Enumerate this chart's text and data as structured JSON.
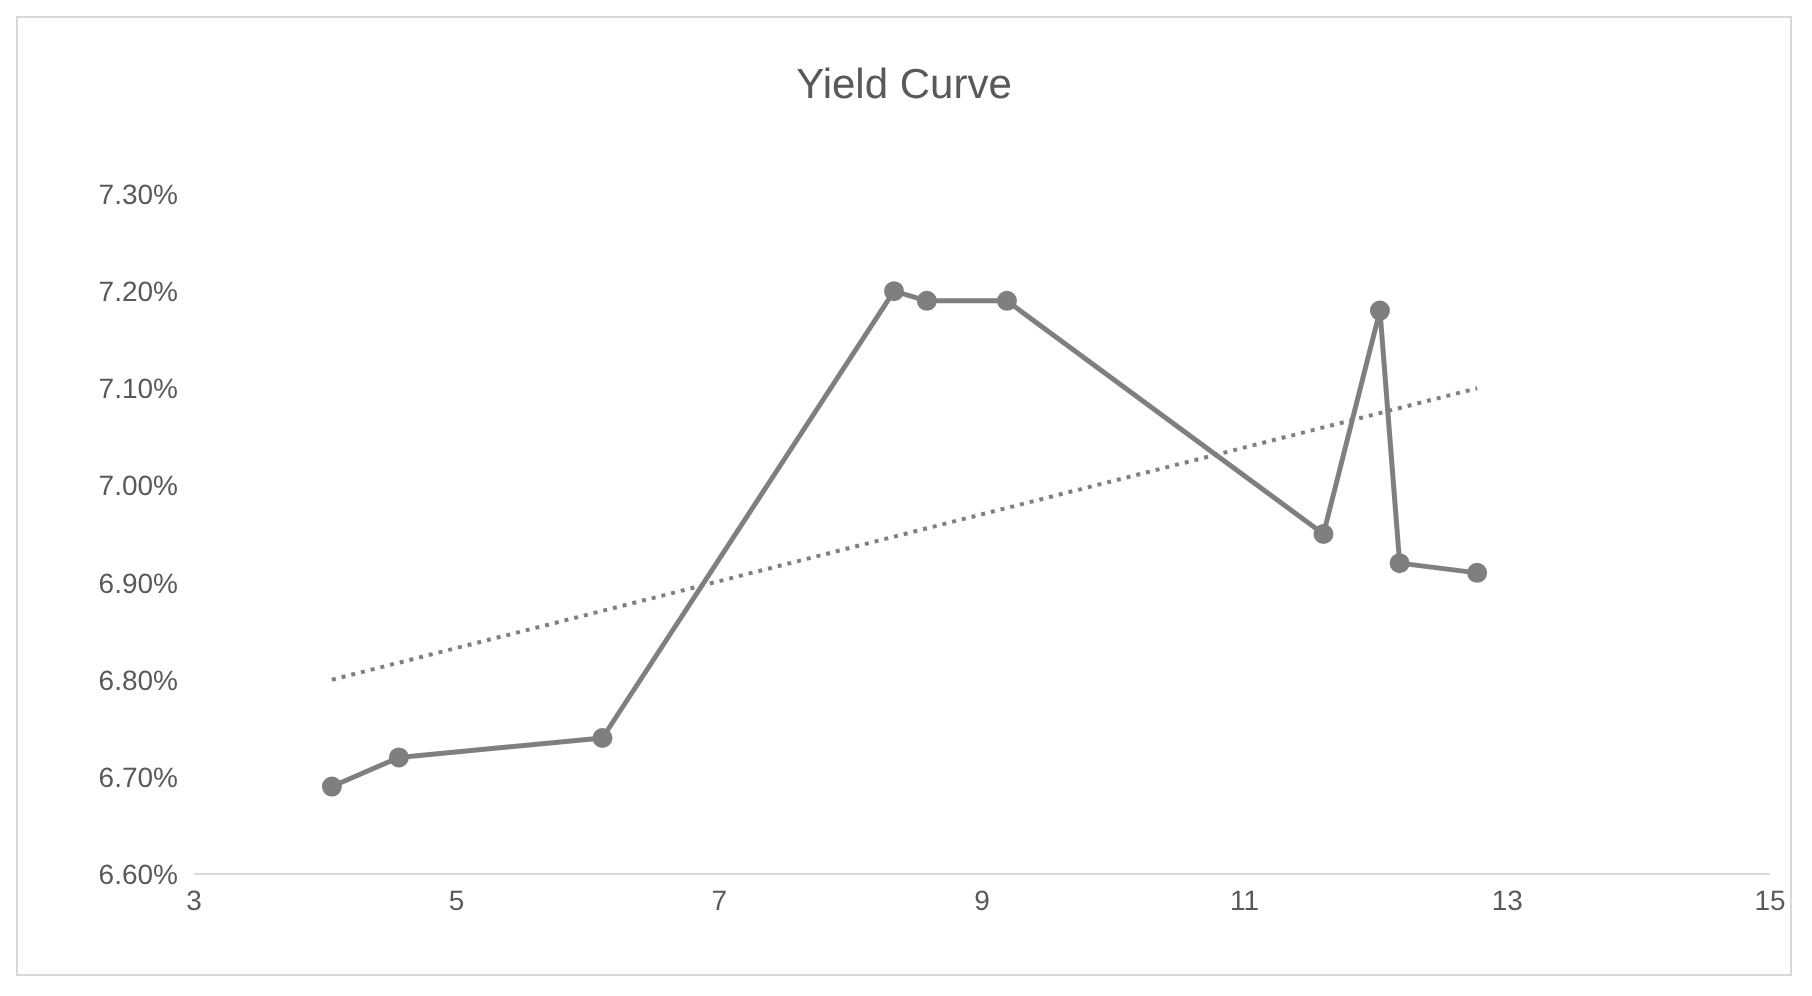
{
  "chart_data": {
    "type": "line",
    "title": "Yield Curve",
    "xlim": [
      3,
      15
    ],
    "xticks": [
      3,
      5,
      7,
      9,
      11,
      13,
      15
    ],
    "ylim": [
      6.6,
      7.3
    ],
    "yticks": [
      {
        "value": 6.6,
        "label": "6.60%"
      },
      {
        "value": 6.7,
        "label": "6.70%"
      },
      {
        "value": 6.8,
        "label": "6.80%"
      },
      {
        "value": 6.9,
        "label": "6.90%"
      },
      {
        "value": 7.0,
        "label": "7.00%"
      },
      {
        "value": 7.1,
        "label": "7.10%"
      },
      {
        "value": 7.2,
        "label": "7.20%"
      },
      {
        "value": 7.3,
        "label": "7.30%"
      }
    ],
    "grid": false,
    "series": [
      {
        "color": "#7f7f7f",
        "marker": "circle",
        "line_style": "solid",
        "x": [
          4.05,
          4.56,
          6.11,
          8.33,
          8.58,
          9.19,
          11.6,
          12.03,
          12.18,
          12.77
        ],
        "values": [
          6.69,
          6.72,
          6.74,
          7.2,
          7.19,
          7.19,
          6.95,
          7.18,
          6.92,
          6.91
        ]
      },
      {
        "color": "#7f7f7f",
        "marker": "none",
        "line_style": "dotted",
        "x": [
          4.05,
          12.77
        ],
        "values": [
          6.8,
          7.1
        ]
      }
    ]
  }
}
